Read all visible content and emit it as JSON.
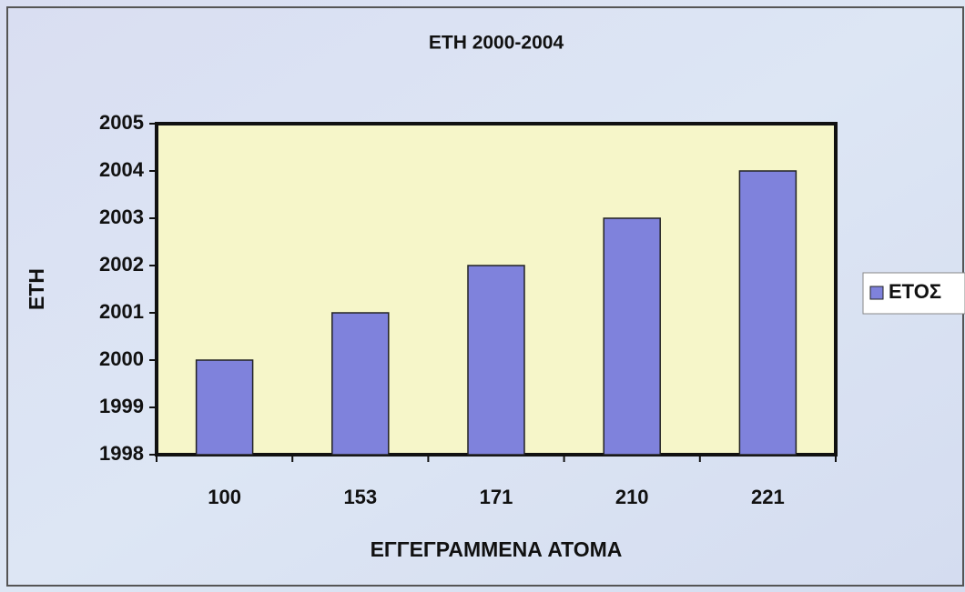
{
  "chart_data": {
    "type": "bar",
    "title": "ΕΤΗ 2000-2004",
    "x_label": "ΕΓΓΕΓΡΑΜΜΕΝΑ ΑΤΟΜΑ",
    "y_label": "ΕΤΗ",
    "categories": [
      "100",
      "153",
      "171",
      "210",
      "221"
    ],
    "series": [
      {
        "name": "ΕΤΟΣ",
        "color": "#7f82dc",
        "values": [
          2000,
          2001,
          2002,
          2003,
          2004
        ]
      }
    ],
    "ylim": [
      1998,
      2005
    ],
    "yticks": [
      1998,
      1999,
      2000,
      2001,
      2002,
      2003,
      2004,
      2005
    ],
    "grid": false,
    "legend": "right"
  }
}
